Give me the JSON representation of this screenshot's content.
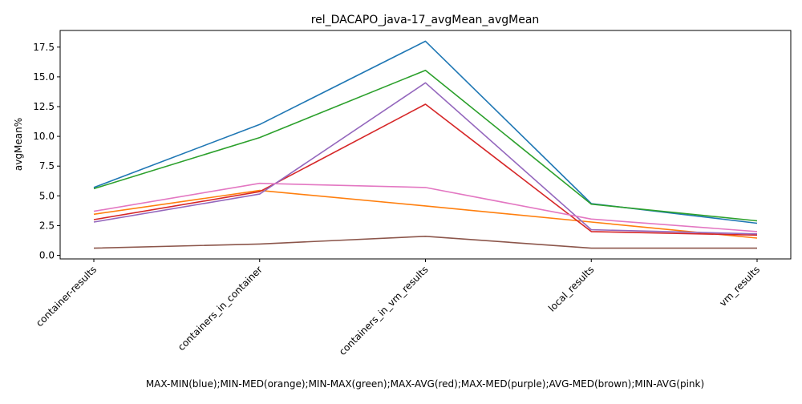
{
  "chart_data": {
    "type": "line",
    "title": "rel_DACAPO_java-17_avgMean_avgMean",
    "xlabel": "MAX-MIN(blue);MIN-MED(orange);MIN-MAX(green);MAX-AVG(red);MAX-MED(purple);AVG-MED(brown);MIN-AVG(pink)",
    "ylabel": "avgMean%",
    "categories": [
      "container-results",
      "containers_in_container",
      "containers_in_vm_results",
      "local_results",
      "vm_results"
    ],
    "ylim": [
      -0.3,
      18.9
    ],
    "yticks": [
      "0.0",
      "2.5",
      "5.0",
      "7.5",
      "10.0",
      "12.5",
      "15.0",
      "17.5"
    ],
    "grid": false,
    "legend": "none",
    "series": [
      {
        "color": "#1f77b4",
        "values": [
          5.7,
          11.0,
          18.0,
          4.35,
          2.7
        ]
      },
      {
        "color": "#ff7f0e",
        "values": [
          3.45,
          5.45,
          4.15,
          2.8,
          1.45
        ]
      },
      {
        "color": "#2ca02c",
        "values": [
          5.6,
          9.9,
          15.55,
          4.3,
          2.9
        ]
      },
      {
        "color": "#d62728",
        "values": [
          3.0,
          5.35,
          12.7,
          2.0,
          1.7
        ]
      },
      {
        "color": "#9467bd",
        "values": [
          2.8,
          5.15,
          14.5,
          2.15,
          1.8
        ]
      },
      {
        "color": "#8c564b",
        "values": [
          0.6,
          0.95,
          1.6,
          0.6,
          0.6
        ]
      },
      {
        "color": "#e377c2",
        "values": [
          3.7,
          6.05,
          5.7,
          3.05,
          2.0
        ]
      }
    ]
  }
}
